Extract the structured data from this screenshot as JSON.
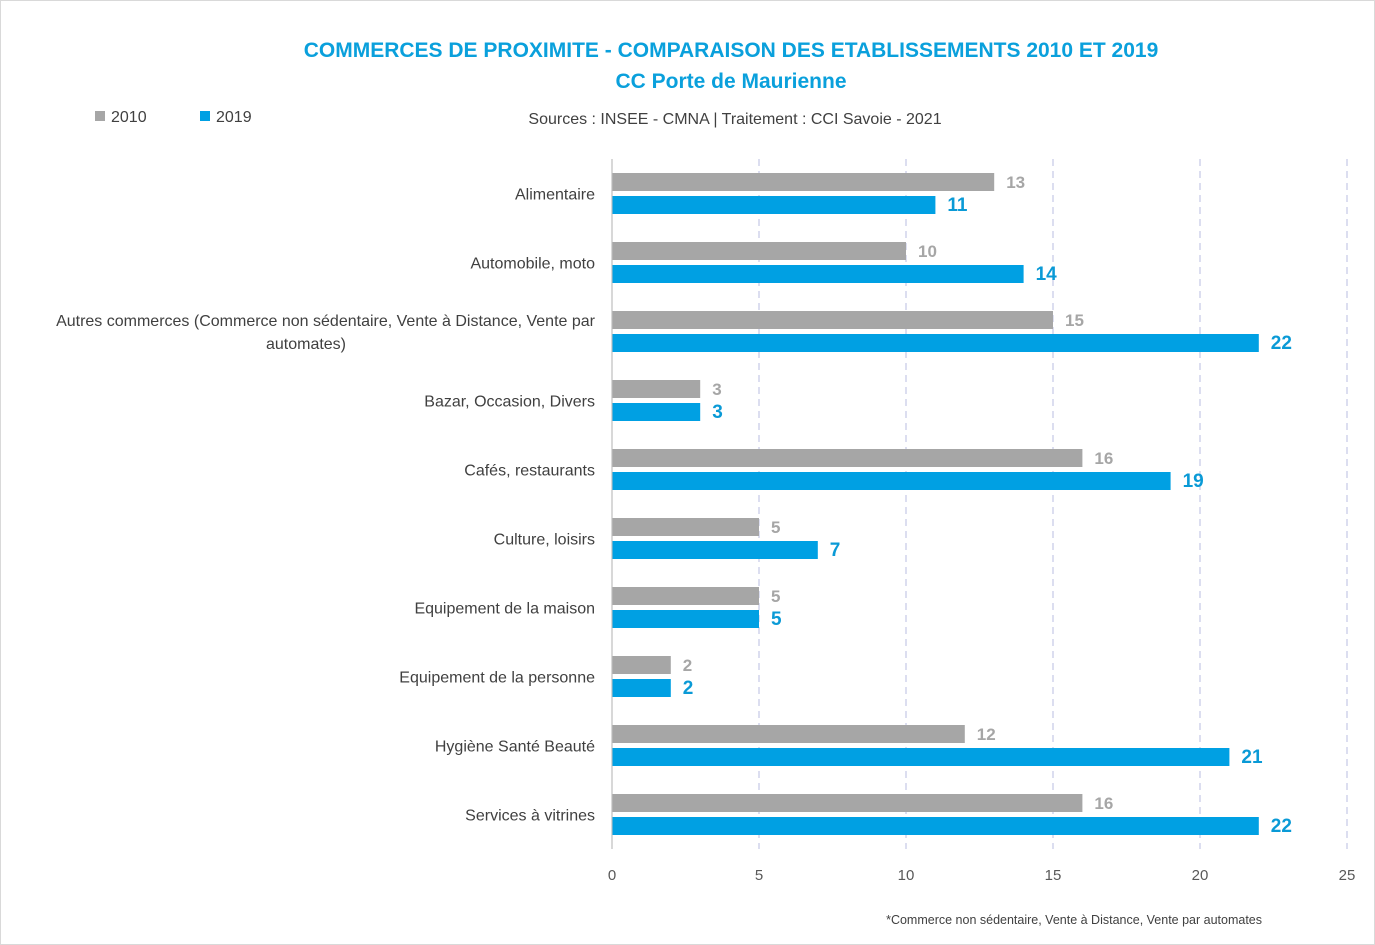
{
  "chart_data": {
    "type": "bar",
    "orientation": "horizontal",
    "title": "COMMERCES DE PROXIMITE - COMPARAISON DES ETABLISSEMENTS 2010 ET 2019",
    "subtitle": "CC Porte de Maurienne",
    "source": "Sources : INSEE - CMNA  |  Traitement : CCI Savoie - 2021",
    "footnote": "*Commerce non sédentaire, Vente à Distance, Vente par automates",
    "categories": [
      [
        "Alimentaire"
      ],
      [
        "Automobile, moto"
      ],
      [
        "Autres commerces (Commerce non sédentaire, Vente à Distance, Vente par",
        "automates)"
      ],
      [
        "Bazar, Occasion, Divers"
      ],
      [
        "Cafés, restaurants"
      ],
      [
        "Culture, loisirs"
      ],
      [
        "Equipement de la maison"
      ],
      [
        "Equipement de la personne"
      ],
      [
        "Hygiène Santé Beauté"
      ],
      [
        "Services à vitrines"
      ]
    ],
    "series": [
      {
        "name": "2010",
        "color": "#a6a6a6",
        "label_color": "#a6a6a6",
        "values": [
          13,
          10,
          15,
          3,
          16,
          5,
          5,
          2,
          12,
          16
        ]
      },
      {
        "name": "2019",
        "color": "#00a0e3",
        "label_color": "#0a9ad6",
        "values": [
          11,
          14,
          22,
          3,
          19,
          7,
          5,
          2,
          21,
          22
        ]
      }
    ],
    "xlim": [
      0,
      25
    ],
    "xticks": [
      0,
      5,
      10,
      15,
      20,
      25
    ],
    "grid": true,
    "legend": "top-left"
  }
}
